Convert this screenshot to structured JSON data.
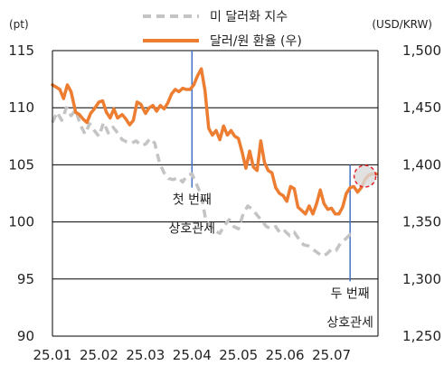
{
  "chart_data": {
    "type": "line",
    "left_unit": "(pt)",
    "right_unit": "(USD/KRW)",
    "left_ylim": [
      90,
      115
    ],
    "right_ylim": [
      1250,
      1500
    ],
    "left_ticks": [
      "90",
      "95",
      "100",
      "105",
      "110",
      "115"
    ],
    "right_ticks": [
      "1,250",
      "1,300",
      "1,350",
      "1,400",
      "1,450",
      "1,500"
    ],
    "x_ticks": [
      "25.01",
      "25.02",
      "25.03",
      "25.04",
      "25.05",
      "25.06",
      "25.07"
    ],
    "x_range": [
      0,
      7.0
    ],
    "grid": "horizontal",
    "legend_position": "top-center",
    "series": [
      {
        "name": "미 달러화 지수",
        "axis": "left",
        "color": "#c4c4c4",
        "style": "dashed",
        "points": [
          [
            0.0,
            108.7
          ],
          [
            0.1,
            109.6
          ],
          [
            0.2,
            108.9
          ],
          [
            0.3,
            110.0
          ],
          [
            0.4,
            109.3
          ],
          [
            0.5,
            109.8
          ],
          [
            0.6,
            108.5
          ],
          [
            0.7,
            107.7
          ],
          [
            0.8,
            108.6
          ],
          [
            0.9,
            108.0
          ],
          [
            1.0,
            107.5
          ],
          [
            1.1,
            108.7
          ],
          [
            1.2,
            107.8
          ],
          [
            1.3,
            108.3
          ],
          [
            1.4,
            107.8
          ],
          [
            1.5,
            107.2
          ],
          [
            1.6,
            107.0
          ],
          [
            1.7,
            106.9
          ],
          [
            1.8,
            107.1
          ],
          [
            1.9,
            106.7
          ],
          [
            2.0,
            106.8
          ],
          [
            2.1,
            107.3
          ],
          [
            2.2,
            106.9
          ],
          [
            2.3,
            105.2
          ],
          [
            2.4,
            104.3
          ],
          [
            2.5,
            103.8
          ],
          [
            2.6,
            103.7
          ],
          [
            2.7,
            103.9
          ],
          [
            2.8,
            103.5
          ],
          [
            2.9,
            104.1
          ],
          [
            3.0,
            104.2
          ],
          [
            3.1,
            103.3
          ],
          [
            3.2,
            102.3
          ],
          [
            3.3,
            100.1
          ],
          [
            3.4,
            99.6
          ],
          [
            3.5,
            99.2
          ],
          [
            3.6,
            99.0
          ],
          [
            3.7,
            99.7
          ],
          [
            3.8,
            100.2
          ],
          [
            3.9,
            99.6
          ],
          [
            4.0,
            99.4
          ],
          [
            4.1,
            100.7
          ],
          [
            4.2,
            101.4
          ],
          [
            4.3,
            101.1
          ],
          [
            4.4,
            100.6
          ],
          [
            4.5,
            100.1
          ],
          [
            4.6,
            99.6
          ],
          [
            4.7,
            99.4
          ],
          [
            4.8,
            99.6
          ],
          [
            4.9,
            99.0
          ],
          [
            5.0,
            99.2
          ],
          [
            5.1,
            98.8
          ],
          [
            5.2,
            99.1
          ],
          [
            5.3,
            98.5
          ],
          [
            5.4,
            98.0
          ],
          [
            5.5,
            97.9
          ],
          [
            5.6,
            97.6
          ],
          [
            5.7,
            97.3
          ],
          [
            5.8,
            97.0
          ],
          [
            5.9,
            97.2
          ],
          [
            6.0,
            97.6
          ],
          [
            6.1,
            97.5
          ],
          [
            6.2,
            98.2
          ],
          [
            6.3,
            98.5
          ],
          [
            6.4,
            98.9
          ],
          [
            6.45,
            98.5
          ]
        ]
      },
      {
        "name": "달러/원 환율 (우)",
        "axis": "right",
        "color": "#ed7d31",
        "style": "solid",
        "points": [
          [
            0.0,
            1470
          ],
          [
            0.08,
            1468
          ],
          [
            0.16,
            1466
          ],
          [
            0.24,
            1458
          ],
          [
            0.32,
            1470
          ],
          [
            0.4,
            1464
          ],
          [
            0.5,
            1446
          ],
          [
            0.58,
            1444
          ],
          [
            0.66,
            1440
          ],
          [
            0.74,
            1437
          ],
          [
            0.82,
            1445
          ],
          [
            0.9,
            1449
          ],
          [
            1.0,
            1455
          ],
          [
            1.08,
            1456
          ],
          [
            1.16,
            1446
          ],
          [
            1.24,
            1441
          ],
          [
            1.32,
            1449
          ],
          [
            1.4,
            1441
          ],
          [
            1.5,
            1444
          ],
          [
            1.58,
            1440
          ],
          [
            1.66,
            1435
          ],
          [
            1.74,
            1439
          ],
          [
            1.82,
            1455
          ],
          [
            1.9,
            1453
          ],
          [
            2.0,
            1445
          ],
          [
            2.08,
            1450
          ],
          [
            2.16,
            1452
          ],
          [
            2.24,
            1447
          ],
          [
            2.32,
            1452
          ],
          [
            2.4,
            1449
          ],
          [
            2.48,
            1454
          ],
          [
            2.56,
            1462
          ],
          [
            2.64,
            1466
          ],
          [
            2.72,
            1464
          ],
          [
            2.8,
            1467
          ],
          [
            2.88,
            1466
          ],
          [
            2.96,
            1466
          ],
          [
            3.04,
            1470
          ],
          [
            3.12,
            1478
          ],
          [
            3.2,
            1484
          ],
          [
            3.28,
            1465
          ],
          [
            3.36,
            1432
          ],
          [
            3.44,
            1426
          ],
          [
            3.52,
            1430
          ],
          [
            3.6,
            1422
          ],
          [
            3.68,
            1434
          ],
          [
            3.76,
            1426
          ],
          [
            3.84,
            1430
          ],
          [
            3.92,
            1425
          ],
          [
            4.0,
            1423
          ],
          [
            4.08,
            1411
          ],
          [
            4.16,
            1397
          ],
          [
            4.24,
            1412
          ],
          [
            4.32,
            1398
          ],
          [
            4.4,
            1395
          ],
          [
            4.48,
            1421
          ],
          [
            4.56,
            1402
          ],
          [
            4.64,
            1395
          ],
          [
            4.72,
            1393
          ],
          [
            4.8,
            1380
          ],
          [
            4.88,
            1375
          ],
          [
            4.96,
            1373
          ],
          [
            5.04,
            1368
          ],
          [
            5.12,
            1381
          ],
          [
            5.2,
            1379
          ],
          [
            5.28,
            1363
          ],
          [
            5.36,
            1360
          ],
          [
            5.44,
            1357
          ],
          [
            5.52,
            1364
          ],
          [
            5.6,
            1357
          ],
          [
            5.68,
            1366
          ],
          [
            5.76,
            1378
          ],
          [
            5.84,
            1366
          ],
          [
            5.92,
            1361
          ],
          [
            6.0,
            1362
          ],
          [
            6.08,
            1357
          ],
          [
            6.16,
            1357
          ],
          [
            6.24,
            1363
          ],
          [
            6.32,
            1375
          ],
          [
            6.4,
            1380
          ],
          [
            6.48,
            1381
          ],
          [
            6.56,
            1376
          ],
          [
            6.64,
            1380
          ],
          [
            6.72,
            1387
          ],
          [
            6.8,
            1391
          ],
          [
            6.88,
            1392
          ],
          [
            6.96,
            1392
          ]
        ]
      }
    ],
    "annotations": [
      {
        "text_lines": [
          "첫 번째",
          "상호관세"
        ],
        "x": 3.0,
        "line_top": 115,
        "line_bottom": 103
      },
      {
        "text_lines": [
          "두 번째",
          "상호관세"
        ],
        "x": 6.4,
        "line_top": 105,
        "line_bottom": 94.8
      }
    ],
    "highlight_circle": {
      "x": 6.72,
      "right_value": 1390,
      "color": "#e0262a"
    }
  }
}
